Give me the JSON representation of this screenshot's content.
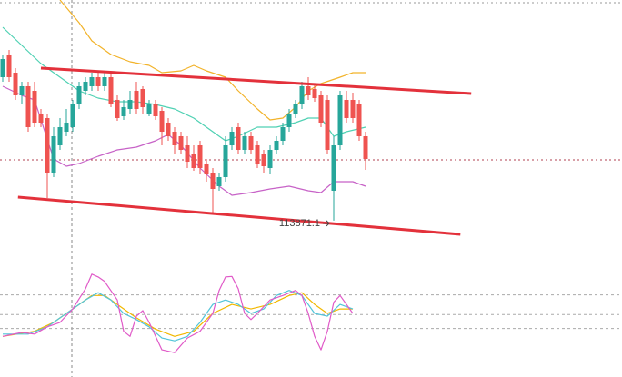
{
  "chart_data": {
    "type": "candlestick",
    "up_color": "#26a69a",
    "down_color": "#ef5350",
    "ylim": [
      113000,
      116300
    ],
    "open": [
      115450,
      115700,
      115500,
      115250,
      115350,
      115300,
      115050,
      115000,
      114400,
      114700,
      114850,
      114900,
      115150,
      115300,
      115350,
      115450,
      115350,
      115450,
      115200,
      115020,
      115100,
      115300,
      115320,
      115050,
      115150,
      115080,
      114950,
      114850,
      114800,
      114700,
      114600,
      114700,
      114500,
      114400,
      114250,
      114350,
      114700,
      114900,
      114650,
      114800,
      114700,
      114600,
      114450,
      114650,
      114750,
      114900,
      115050,
      115150,
      115350,
      115320,
      115250,
      115200,
      114200,
      114700,
      115200,
      115200,
      115150,
      114800
    ],
    "high": [
      115700,
      115750,
      115550,
      115400,
      115400,
      115400,
      115100,
      115050,
      114900,
      115000,
      115100,
      115200,
      115400,
      115450,
      115500,
      115500,
      115500,
      115500,
      115250,
      115200,
      115300,
      115400,
      115350,
      115200,
      115200,
      115120,
      115000,
      114900,
      114850,
      114800,
      114700,
      114750,
      114550,
      114450,
      114400,
      114800,
      114900,
      114950,
      114850,
      114850,
      114750,
      114650,
      114700,
      114800,
      114950,
      115100,
      115200,
      115400,
      115450,
      115380,
      115300,
      115250,
      114800,
      115300,
      115300,
      115280,
      115200,
      114850
    ],
    "low": [
      115400,
      115400,
      115200,
      115150,
      114850,
      114900,
      114900,
      114120,
      114350,
      114650,
      114800,
      114850,
      115100,
      115250,
      115300,
      115300,
      115300,
      115120,
      114970,
      114980,
      115050,
      115050,
      115050,
      115020,
      114980,
      114700,
      114750,
      114600,
      114600,
      114450,
      114420,
      114380,
      114300,
      113960,
      114200,
      114300,
      114650,
      114600,
      114600,
      114600,
      114450,
      114400,
      114380,
      114600,
      114700,
      114850,
      115000,
      115100,
      115200,
      115180,
      114900,
      114600,
      113871.1,
      114650,
      114950,
      114950,
      114750,
      114430
    ],
    "close": [
      115650,
      115450,
      115250,
      115350,
      114900,
      114950,
      114950,
      114400,
      114800,
      114900,
      114950,
      115150,
      115350,
      115400,
      115450,
      115350,
      115450,
      115150,
      115000,
      115120,
      115200,
      115100,
      115120,
      115150,
      115020,
      114850,
      114800,
      114700,
      114650,
      114520,
      114450,
      114450,
      114380,
      114220,
      114350,
      114700,
      114850,
      114650,
      114800,
      114650,
      114500,
      114470,
      114650,
      114750,
      114900,
      115050,
      115150,
      115350,
      115250,
      115220,
      114950,
      114650,
      114700,
      115250,
      115000,
      115000,
      114800,
      114550
    ],
    "last_price": 114540,
    "annotation": "113871.1",
    "bands": [
      {
        "color": "#f2b32a",
        "x": [
          9,
          12,
          14,
          17,
          20,
          23,
          25,
          28,
          30,
          32,
          35,
          37,
          40,
          42,
          44,
          46,
          48,
          50,
          53,
          55,
          57
        ],
        "values": [
          116300,
          116050,
          115850,
          115700,
          115620,
          115580,
          115500,
          115520,
          115580,
          115520,
          115450,
          115300,
          115100,
          114980,
          115000,
          115120,
          115300,
          115380,
          115450,
          115500,
          115500
        ]
      },
      {
        "color": "#4fd1b3",
        "x": [
          0,
          3,
          6,
          9,
          12,
          15,
          18,
          21,
          24,
          27,
          30,
          33,
          35,
          37,
          40,
          43,
          46,
          48,
          50,
          52,
          54,
          57
        ],
        "values": [
          116000,
          115800,
          115600,
          115450,
          115300,
          115220,
          115180,
          115180,
          115150,
          115100,
          115000,
          114850,
          114750,
          114800,
          114900,
          114900,
          114950,
          115000,
          115000,
          114800,
          114850,
          114900
        ]
      },
      {
        "color": "#c762c7",
        "x": [
          0,
          3,
          5,
          8,
          10,
          12,
          15,
          18,
          21,
          24,
          26,
          28,
          31,
          34,
          36,
          39,
          42,
          45,
          48,
          50,
          52,
          55,
          57
        ],
        "values": [
          115350,
          115250,
          115200,
          114550,
          114470,
          114500,
          114580,
          114650,
          114680,
          114750,
          114820,
          114700,
          114450,
          114250,
          114150,
          114180,
          114220,
          114250,
          114200,
          114180,
          114300,
          114300,
          114250
        ]
      }
    ],
    "trendlines": [
      {
        "color": "#e3313b",
        "x": [
          6,
          73.6
        ],
        "values": [
          115550,
          115270
        ]
      },
      {
        "color": "#e3313b",
        "x": [
          2.4,
          71.9
        ],
        "values": [
          114130,
          113720
        ]
      }
    ],
    "oscillator": {
      "ylim": [
        -30,
        130
      ],
      "levels": [
        80,
        45,
        20
      ],
      "lines": [
        {
          "color": "#f2b800",
          "x": [
            0,
            5,
            8,
            11,
            14,
            16,
            18,
            21,
            24,
            27,
            30,
            33,
            36,
            39,
            42,
            45,
            47,
            49,
            51,
            53,
            55
          ],
          "values": [
            6,
            15,
            31,
            55,
            79,
            79,
            63,
            39,
            19,
            6,
            15,
            47,
            63,
            55,
            63,
            79,
            84,
            63,
            47,
            55,
            55
          ]
        },
        {
          "color": "#52c4d8",
          "x": [
            0,
            4,
            7,
            10,
            13,
            15,
            17,
            19,
            21,
            23,
            25,
            27,
            29,
            31,
            33,
            35,
            37,
            39,
            41,
            43,
            45,
            47,
            49,
            51,
            53,
            55
          ],
          "values": [
            10,
            10,
            23,
            47,
            71,
            84,
            71,
            47,
            36,
            23,
            3,
            -2,
            6,
            31,
            63,
            71,
            63,
            47,
            55,
            79,
            88,
            79,
            47,
            42,
            63,
            55
          ]
        },
        {
          "color": "#e05ac8",
          "x": [
            0,
            3,
            5,
            7,
            9,
            11,
            13,
            14,
            15,
            16,
            18,
            19,
            20,
            21,
            22,
            23,
            25,
            27,
            29,
            31,
            33,
            34,
            35,
            36,
            37,
            38,
            39,
            40,
            42,
            44,
            46,
            47,
            48,
            49,
            50,
            51,
            52,
            53,
            54,
            55
          ],
          "values": [
            6,
            13,
            10,
            23,
            31,
            55,
            91,
            117,
            112,
            104,
            71,
            15,
            6,
            42,
            52,
            31,
            -18,
            -23,
            3,
            15,
            47,
            88,
            112,
            113,
            91,
            47,
            36,
            47,
            71,
            79,
            88,
            79,
            47,
            6,
            -18,
            15,
            67,
            79,
            63,
            47
          ]
        }
      ]
    }
  }
}
